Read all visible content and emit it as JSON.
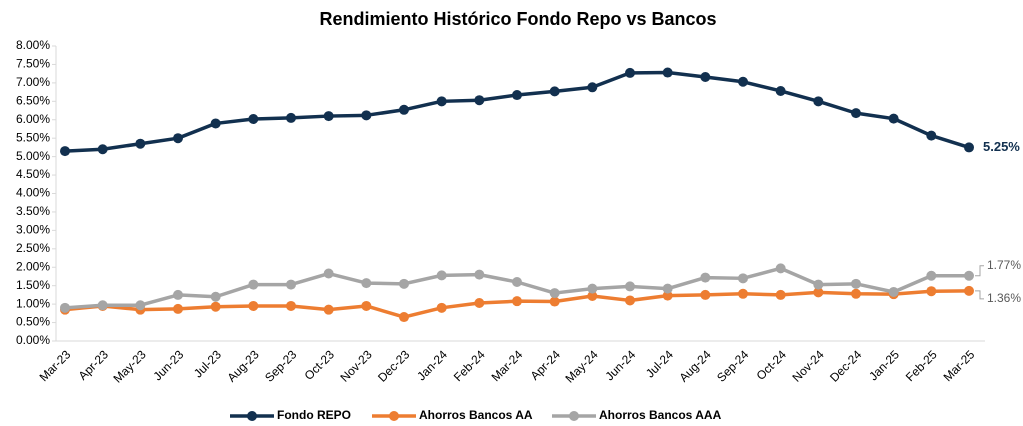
{
  "chart_data": {
    "type": "line",
    "title": "Rendimiento Histórico Fondo Repo vs Bancos",
    "categories": [
      "Mar-23",
      "Apr-23",
      "May-23",
      "Jun-23",
      "Jul-23",
      "Aug-23",
      "Sep-23",
      "Oct-23",
      "Nov-23",
      "Dec-23",
      "Jan-24",
      "Feb-24",
      "Mar-24",
      "Apr-24",
      "May-24",
      "Jun-24",
      "Jul-24",
      "Aug-24",
      "Sep-24",
      "Oct-24",
      "Nov-24",
      "Dec-24",
      "Jan-25",
      "Feb-25",
      "Mar-25"
    ],
    "series": [
      {
        "name": "Fondo REPO",
        "color": "#12304f",
        "values": [
          5.15,
          5.2,
          5.35,
          5.5,
          5.9,
          6.02,
          6.05,
          6.1,
          6.12,
          6.27,
          6.5,
          6.53,
          6.67,
          6.77,
          6.88,
          7.27,
          7.28,
          7.16,
          7.03,
          6.78,
          6.5,
          6.18,
          6.03,
          5.57,
          5.25
        ],
        "value_labels": [
          null,
          null,
          null,
          null,
          null,
          null,
          null,
          null,
          null,
          null,
          null,
          null,
          null,
          null,
          null,
          null,
          null,
          null,
          null,
          null,
          null,
          null,
          null,
          null,
          "5.25%"
        ]
      },
      {
        "name": "Ahorros Bancos AA",
        "color": "#ed7d31",
        "values": [
          0.85,
          0.95,
          0.85,
          0.87,
          0.93,
          0.95,
          0.95,
          0.85,
          0.95,
          0.65,
          0.9,
          1.03,
          1.08,
          1.07,
          1.22,
          1.1,
          1.23,
          1.25,
          1.28,
          1.25,
          1.32,
          1.28,
          1.27,
          1.35,
          1.36
        ],
        "value_labels": [
          null,
          null,
          null,
          null,
          null,
          null,
          null,
          null,
          null,
          null,
          null,
          null,
          null,
          null,
          null,
          null,
          null,
          null,
          null,
          null,
          null,
          null,
          null,
          null,
          "1.36%"
        ]
      },
      {
        "name": "Ahorros Bancos AAA",
        "color": "#a5a5a5",
        "values": [
          0.9,
          0.97,
          0.97,
          1.25,
          1.2,
          1.53,
          1.53,
          1.83,
          1.57,
          1.55,
          1.78,
          1.8,
          1.6,
          1.3,
          1.42,
          1.48,
          1.42,
          1.72,
          1.7,
          1.97,
          1.53,
          1.55,
          1.33,
          1.77,
          1.77
        ],
        "value_labels": [
          null,
          null,
          null,
          null,
          null,
          null,
          null,
          null,
          null,
          null,
          null,
          null,
          null,
          null,
          null,
          null,
          null,
          null,
          null,
          null,
          null,
          null,
          null,
          null,
          "1.77%"
        ]
      }
    ],
    "ylim": [
      0,
      8
    ],
    "yticks": [
      {
        "value": 0,
        "label": "0.00%"
      },
      {
        "value": 0.5,
        "label": "0.50%"
      },
      {
        "value": 1,
        "label": "1.00%"
      },
      {
        "value": 1.5,
        "label": "1.50%"
      },
      {
        "value": 2,
        "label": "2.00%"
      },
      {
        "value": 2.5,
        "label": "2.50%"
      },
      {
        "value": 3,
        "label": "3.00%"
      },
      {
        "value": 3.5,
        "label": "3.50%"
      },
      {
        "value": 4,
        "label": "4.00%"
      },
      {
        "value": 4.5,
        "label": "4.50%"
      },
      {
        "value": 5,
        "label": "5.00%"
      },
      {
        "value": 5.5,
        "label": "5.50%"
      },
      {
        "value": 6,
        "label": "6.00%"
      },
      {
        "value": 6.5,
        "label": "6.50%"
      },
      {
        "value": 7,
        "label": "7.00%"
      },
      {
        "value": 7.5,
        "label": "7.50%"
      },
      {
        "value": 8,
        "label": "8.00%"
      }
    ],
    "grid": false,
    "legend": "bottom"
  }
}
